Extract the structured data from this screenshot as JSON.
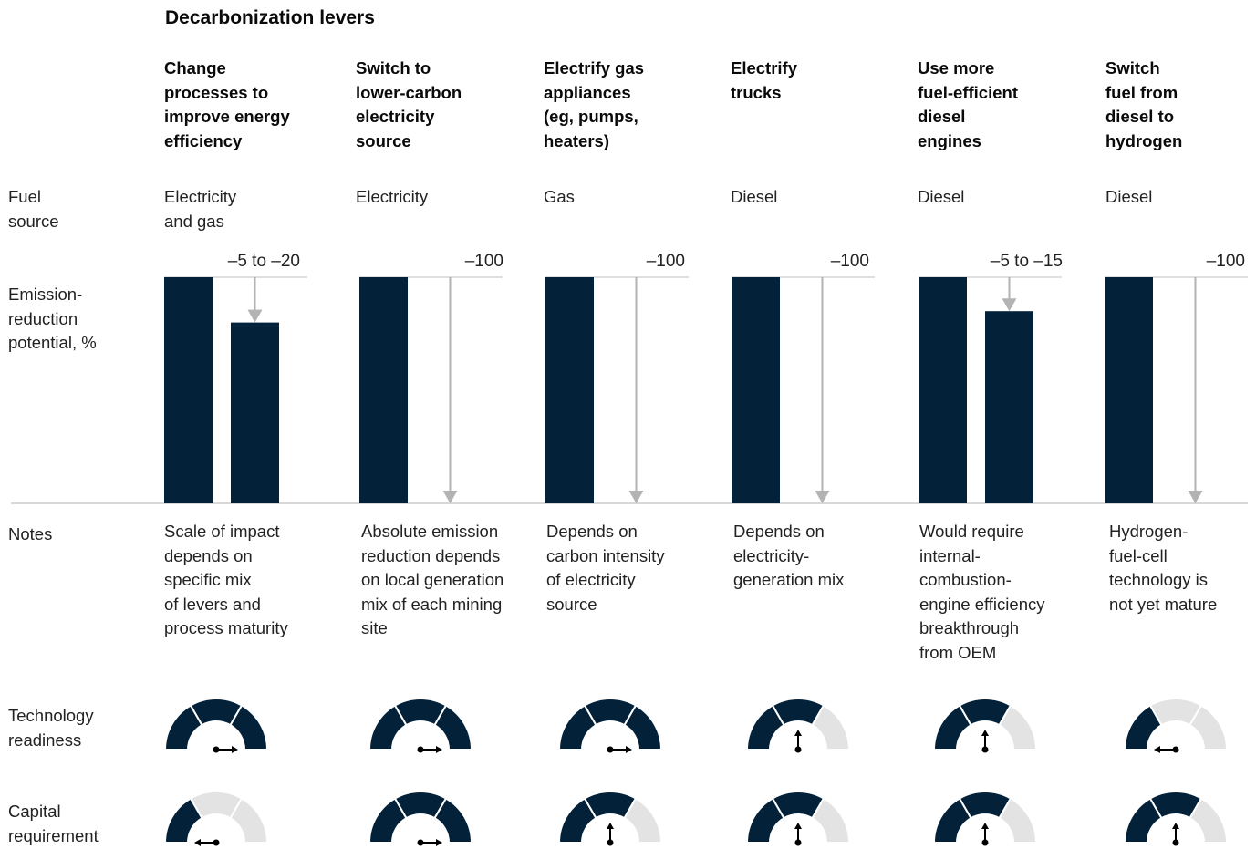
{
  "title": "Decarbonization levers",
  "row_labels": {
    "fuel_source": "Fuel\nsource",
    "emission": "Emission-\nreduction\npotential, %",
    "notes": "Notes",
    "technology": "Technology\nreadiness",
    "capital": "Capital\nrequirement"
  },
  "colors": {
    "bar": "#03223a",
    "arrow": "#b3b3b3",
    "gauge_empty": "#e3e3e3",
    "axis": "#cccccc"
  },
  "chart_data": {
    "type": "bar",
    "title": "Decarbonization levers",
    "ylabel": "Emission-reduction potential, %",
    "baseline": 100,
    "ylim": [
      0,
      100
    ],
    "categories": [
      "Change processes to improve energy efficiency",
      "Switch to lower-carbon electricity source",
      "Electrify gas appliances (eg, pumps, heaters)",
      "Electrify trucks",
      "Use more fuel-efficient diesel engines",
      "Switch fuel from diesel to hydrogen"
    ],
    "value_labels": [
      "–5 to –20",
      "–100",
      "–100",
      "–100",
      "–5 to –15",
      "–100"
    ],
    "after_values": [
      80,
      0,
      0,
      0,
      85,
      0
    ],
    "technology_readiness_segments_of_3": [
      3,
      3,
      3,
      2,
      2,
      1
    ],
    "capital_requirement_segments_of_3": [
      1,
      3,
      2,
      2,
      2,
      2
    ]
  },
  "levers": [
    {
      "title": "Change\nprocesses to\nimprove energy\nefficiency",
      "fuel": "Electricity\nand gas",
      "value_label": "–5 to –20",
      "note": "Scale of impact\ndepends on\nspecific mix\nof levers and\nprocess maturity"
    },
    {
      "title": "Switch to\nlower-carbon\nelectricity\nsource",
      "fuel": "Electricity",
      "value_label": "–100",
      "note": "Absolute emission\nreduction depends\non local generation\nmix of each mining\nsite"
    },
    {
      "title": "Electrify gas\nappliances\n(eg, pumps,\nheaters)",
      "fuel": "Gas",
      "value_label": "–100",
      "note": "Depends on\ncarbon intensity\nof electricity\nsource"
    },
    {
      "title": "Electrify\ntrucks",
      "fuel": "Diesel",
      "value_label": "–100",
      "note": "Depends on\nelectricity-\ngeneration mix"
    },
    {
      "title": "Use more\nfuel-efficient\ndiesel\nengines",
      "fuel": "Diesel",
      "value_label": "–5 to –15",
      "note": "Would require\ninternal-\ncombustion-\nengine efficiency\nbreakthrough\nfrom OEM"
    },
    {
      "title": "Switch\nfuel from\ndiesel to\nhydrogen",
      "fuel": "Diesel",
      "value_label": "–100",
      "note": "Hydrogen-\nfuel-cell\ntechnology is\nnot yet mature"
    }
  ]
}
